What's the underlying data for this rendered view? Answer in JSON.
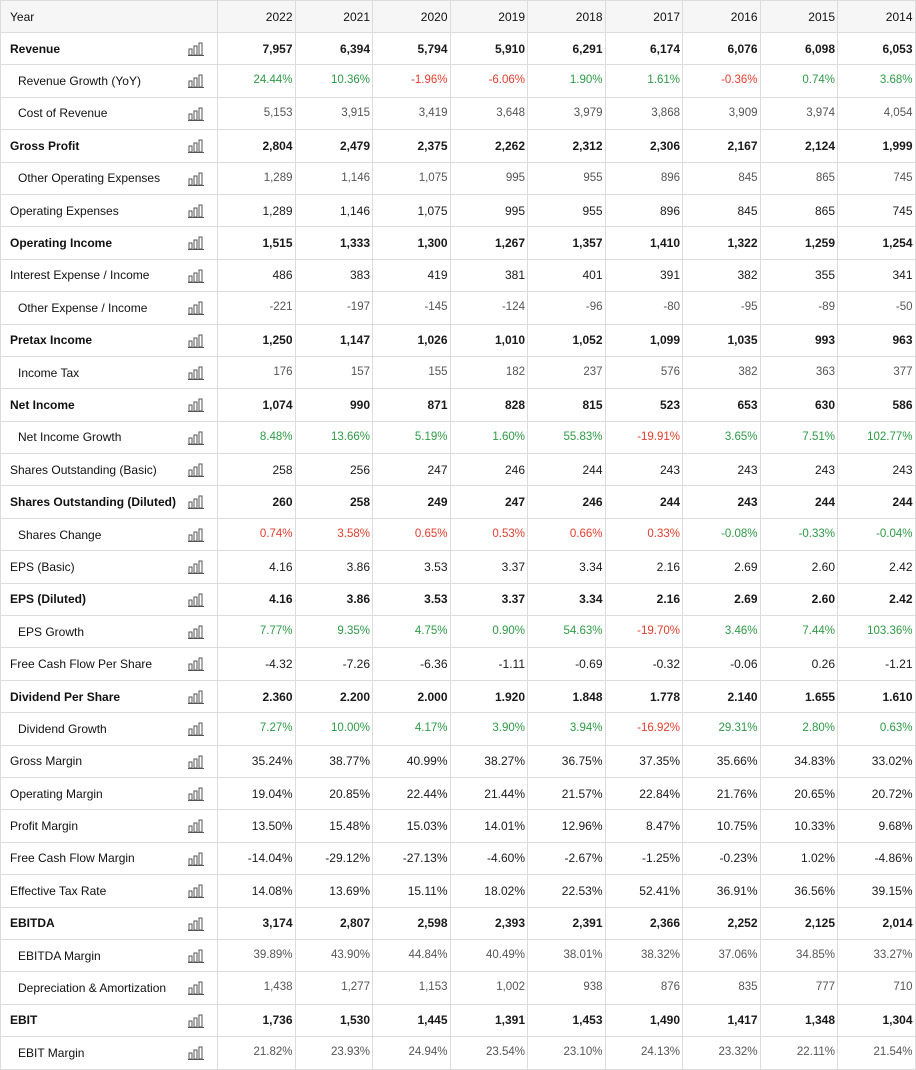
{
  "table": {
    "header_label": "Year",
    "years": [
      "2022",
      "2021",
      "2020",
      "2019",
      "2018",
      "2017",
      "2016",
      "2015",
      "2014"
    ],
    "icon": "bar-chart-icon",
    "colors": {
      "positive": "#2e9a45",
      "negative": "#e23d2c"
    },
    "rows": [
      {
        "label": "Revenue",
        "style": "bold",
        "values": [
          "7,957",
          "6,394",
          "5,794",
          "5,910",
          "6,291",
          "6,174",
          "6,076",
          "6,098",
          "6,053"
        ]
      },
      {
        "label": "Revenue Growth (YoY)",
        "style": "sub",
        "tone": "growth",
        "values": [
          "24.44%",
          "10.36%",
          "-1.96%",
          "-6.06%",
          "1.90%",
          "1.61%",
          "-0.36%",
          "0.74%",
          "3.68%"
        ]
      },
      {
        "label": "Cost of Revenue",
        "style": "sub",
        "values": [
          "5,153",
          "3,915",
          "3,419",
          "3,648",
          "3,979",
          "3,868",
          "3,909",
          "3,974",
          "4,054"
        ]
      },
      {
        "label": "Gross Profit",
        "style": "bold",
        "values": [
          "2,804",
          "2,479",
          "2,375",
          "2,262",
          "2,312",
          "2,306",
          "2,167",
          "2,124",
          "1,999"
        ]
      },
      {
        "label": "Other Operating Expenses",
        "style": "sub",
        "values": [
          "1,289",
          "1,146",
          "1,075",
          "995",
          "955",
          "896",
          "845",
          "865",
          "745"
        ]
      },
      {
        "label": "Operating Expenses",
        "style": "normal",
        "values": [
          "1,289",
          "1,146",
          "1,075",
          "995",
          "955",
          "896",
          "845",
          "865",
          "745"
        ]
      },
      {
        "label": "Operating Income",
        "style": "bold",
        "values": [
          "1,515",
          "1,333",
          "1,300",
          "1,267",
          "1,357",
          "1,410",
          "1,322",
          "1,259",
          "1,254"
        ]
      },
      {
        "label": "Interest Expense / Income",
        "style": "normal",
        "values": [
          "486",
          "383",
          "419",
          "381",
          "401",
          "391",
          "382",
          "355",
          "341"
        ]
      },
      {
        "label": "Other Expense / Income",
        "style": "sub",
        "values": [
          "-221",
          "-197",
          "-145",
          "-124",
          "-96",
          "-80",
          "-95",
          "-89",
          "-50"
        ]
      },
      {
        "label": "Pretax Income",
        "style": "bold",
        "values": [
          "1,250",
          "1,147",
          "1,026",
          "1,010",
          "1,052",
          "1,099",
          "1,035",
          "993",
          "963"
        ]
      },
      {
        "label": "Income Tax",
        "style": "sub",
        "values": [
          "176",
          "157",
          "155",
          "182",
          "237",
          "576",
          "382",
          "363",
          "377"
        ]
      },
      {
        "label": "Net Income",
        "style": "bold",
        "values": [
          "1,074",
          "990",
          "871",
          "828",
          "815",
          "523",
          "653",
          "630",
          "586"
        ]
      },
      {
        "label": "Net Income Growth",
        "style": "sub",
        "tone": "growth",
        "values": [
          "8.48%",
          "13.66%",
          "5.19%",
          "1.60%",
          "55.83%",
          "-19.91%",
          "3.65%",
          "7.51%",
          "102.77%"
        ]
      },
      {
        "label": "Shares Outstanding (Basic)",
        "style": "normal",
        "values": [
          "258",
          "256",
          "247",
          "246",
          "244",
          "243",
          "243",
          "243",
          "243"
        ]
      },
      {
        "label": "Shares Outstanding (Diluted)",
        "style": "bold",
        "values": [
          "260",
          "258",
          "249",
          "247",
          "246",
          "244",
          "243",
          "244",
          "244"
        ]
      },
      {
        "label": "Shares Change",
        "style": "sub",
        "tone": "shares",
        "values": [
          "0.74%",
          "3.58%",
          "0.65%",
          "0.53%",
          "0.66%",
          "0.33%",
          "-0.08%",
          "-0.33%",
          "-0.04%"
        ]
      },
      {
        "label": "EPS (Basic)",
        "style": "normal",
        "values": [
          "4.16",
          "3.86",
          "3.53",
          "3.37",
          "3.34",
          "2.16",
          "2.69",
          "2.60",
          "2.42"
        ]
      },
      {
        "label": "EPS (Diluted)",
        "style": "bold",
        "values": [
          "4.16",
          "3.86",
          "3.53",
          "3.37",
          "3.34",
          "2.16",
          "2.69",
          "2.60",
          "2.42"
        ]
      },
      {
        "label": "EPS Growth",
        "style": "sub",
        "tone": "growth",
        "values": [
          "7.77%",
          "9.35%",
          "4.75%",
          "0.90%",
          "54.63%",
          "-19.70%",
          "3.46%",
          "7.44%",
          "103.36%"
        ]
      },
      {
        "label": "Free Cash Flow Per Share",
        "style": "normal",
        "values": [
          "-4.32",
          "-7.26",
          "-6.36",
          "-1.11",
          "-0.69",
          "-0.32",
          "-0.06",
          "0.26",
          "-1.21"
        ]
      },
      {
        "label": "Dividend Per Share",
        "style": "bold",
        "values": [
          "2.360",
          "2.200",
          "2.000",
          "1.920",
          "1.848",
          "1.778",
          "2.140",
          "1.655",
          "1.610"
        ]
      },
      {
        "label": "Dividend Growth",
        "style": "sub",
        "tone": "growth",
        "values": [
          "7.27%",
          "10.00%",
          "4.17%",
          "3.90%",
          "3.94%",
          "-16.92%",
          "29.31%",
          "2.80%",
          "0.63%"
        ]
      },
      {
        "label": "Gross Margin",
        "style": "normal",
        "values": [
          "35.24%",
          "38.77%",
          "40.99%",
          "38.27%",
          "36.75%",
          "37.35%",
          "35.66%",
          "34.83%",
          "33.02%"
        ]
      },
      {
        "label": "Operating Margin",
        "style": "normal",
        "values": [
          "19.04%",
          "20.85%",
          "22.44%",
          "21.44%",
          "21.57%",
          "22.84%",
          "21.76%",
          "20.65%",
          "20.72%"
        ]
      },
      {
        "label": "Profit Margin",
        "style": "normal",
        "values": [
          "13.50%",
          "15.48%",
          "15.03%",
          "14.01%",
          "12.96%",
          "8.47%",
          "10.75%",
          "10.33%",
          "9.68%"
        ]
      },
      {
        "label": "Free Cash Flow Margin",
        "style": "normal",
        "values": [
          "-14.04%",
          "-29.12%",
          "-27.13%",
          "-4.60%",
          "-2.67%",
          "-1.25%",
          "-0.23%",
          "1.02%",
          "-4.86%"
        ]
      },
      {
        "label": "Effective Tax Rate",
        "style": "normal",
        "values": [
          "14.08%",
          "13.69%",
          "15.11%",
          "18.02%",
          "22.53%",
          "52.41%",
          "36.91%",
          "36.56%",
          "39.15%"
        ]
      },
      {
        "label": "EBITDA",
        "style": "bold",
        "values": [
          "3,174",
          "2,807",
          "2,598",
          "2,393",
          "2,391",
          "2,366",
          "2,252",
          "2,125",
          "2,014"
        ]
      },
      {
        "label": "EBITDA Margin",
        "style": "sub",
        "values": [
          "39.89%",
          "43.90%",
          "44.84%",
          "40.49%",
          "38.01%",
          "38.32%",
          "37.06%",
          "34.85%",
          "33.27%"
        ]
      },
      {
        "label": "Depreciation & Amortization",
        "style": "sub",
        "values": [
          "1,438",
          "1,277",
          "1,153",
          "1,002",
          "938",
          "876",
          "835",
          "777",
          "710"
        ]
      },
      {
        "label": "EBIT",
        "style": "bold",
        "values": [
          "1,736",
          "1,530",
          "1,445",
          "1,391",
          "1,453",
          "1,490",
          "1,417",
          "1,348",
          "1,304"
        ]
      },
      {
        "label": "EBIT Margin",
        "style": "sub",
        "values": [
          "21.82%",
          "23.93%",
          "24.94%",
          "23.54%",
          "23.10%",
          "24.13%",
          "23.32%",
          "22.11%",
          "21.54%"
        ]
      }
    ]
  }
}
